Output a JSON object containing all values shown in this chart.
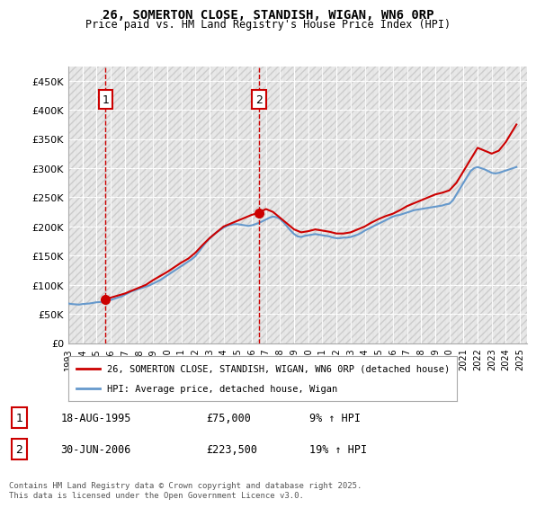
{
  "title_line1": "26, SOMERTON CLOSE, STANDISH, WIGAN, WN6 0RP",
  "title_line2": "Price paid vs. HM Land Registry's House Price Index (HPI)",
  "ylabel": "",
  "ylim": [
    0,
    475000
  ],
  "yticks": [
    0,
    50000,
    100000,
    150000,
    200000,
    250000,
    300000,
    350000,
    400000,
    450000
  ],
  "ytick_labels": [
    "£0",
    "£50K",
    "£100K",
    "£150K",
    "£200K",
    "£250K",
    "£300K",
    "£350K",
    "£400K",
    "£450K"
  ],
  "xlim_start": 1993.0,
  "xlim_end": 2025.5,
  "price_paid_color": "#cc0000",
  "hpi_color": "#6699cc",
  "legend_label_price": "26, SOMERTON CLOSE, STANDISH, WIGAN, WN6 0RP (detached house)",
  "legend_label_hpi": "HPI: Average price, detached house, Wigan",
  "marker1_x": 1995.63,
  "marker1_y": 75000,
  "marker1_label": "1",
  "marker2_x": 2006.5,
  "marker2_y": 223500,
  "marker2_label": "2",
  "dashed_line1_x": 1995.63,
  "dashed_line2_x": 2006.5,
  "table_data": [
    {
      "num": "1",
      "date": "18-AUG-1995",
      "price": "£75,000",
      "hpi": "9% ↑ HPI"
    },
    {
      "num": "2",
      "date": "30-JUN-2006",
      "price": "£223,500",
      "hpi": "19% ↑ HPI"
    }
  ],
  "footer": "Contains HM Land Registry data © Crown copyright and database right 2025.\nThis data is licensed under the Open Government Licence v3.0.",
  "bg_hatch_color": "#dddddd",
  "grid_color": "#ffffff",
  "plot_bg": "#f0f0f0",
  "hpi_data_x": [
    1993.0,
    1993.25,
    1993.5,
    1993.75,
    1994.0,
    1994.25,
    1994.5,
    1994.75,
    1995.0,
    1995.25,
    1995.5,
    1995.75,
    1996.0,
    1996.25,
    1996.5,
    1996.75,
    1997.0,
    1997.25,
    1997.5,
    1997.75,
    1998.0,
    1998.25,
    1998.5,
    1998.75,
    1999.0,
    1999.25,
    1999.5,
    1999.75,
    2000.0,
    2000.25,
    2000.5,
    2000.75,
    2001.0,
    2001.25,
    2001.5,
    2001.75,
    2002.0,
    2002.25,
    2002.5,
    2002.75,
    2003.0,
    2003.25,
    2003.5,
    2003.75,
    2004.0,
    2004.25,
    2004.5,
    2004.75,
    2005.0,
    2005.25,
    2005.5,
    2005.75,
    2006.0,
    2006.25,
    2006.5,
    2006.75,
    2007.0,
    2007.25,
    2007.5,
    2007.75,
    2008.0,
    2008.25,
    2008.5,
    2008.75,
    2009.0,
    2009.25,
    2009.5,
    2009.75,
    2010.0,
    2010.25,
    2010.5,
    2010.75,
    2011.0,
    2011.25,
    2011.5,
    2011.75,
    2012.0,
    2012.25,
    2012.5,
    2012.75,
    2013.0,
    2013.25,
    2013.5,
    2013.75,
    2014.0,
    2014.25,
    2014.5,
    2014.75,
    2015.0,
    2015.25,
    2015.5,
    2015.75,
    2016.0,
    2016.25,
    2016.5,
    2016.75,
    2017.0,
    2017.25,
    2017.5,
    2017.75,
    2018.0,
    2018.25,
    2018.5,
    2018.75,
    2019.0,
    2019.25,
    2019.5,
    2019.75,
    2020.0,
    2020.25,
    2020.5,
    2020.75,
    2021.0,
    2021.25,
    2021.5,
    2021.75,
    2022.0,
    2022.25,
    2022.5,
    2022.75,
    2023.0,
    2023.25,
    2023.5,
    2023.75,
    2024.0,
    2024.25,
    2024.5,
    2024.75
  ],
  "hpi_data_y": [
    68000,
    67000,
    66500,
    66000,
    67000,
    67500,
    68000,
    69000,
    70000,
    70500,
    71000,
    72000,
    74000,
    76000,
    78000,
    80000,
    83000,
    86000,
    89000,
    91000,
    93000,
    95000,
    97000,
    99000,
    102000,
    105000,
    108000,
    112000,
    116000,
    120000,
    124000,
    128000,
    132000,
    136000,
    140000,
    144000,
    149000,
    157000,
    165000,
    173000,
    179000,
    185000,
    190000,
    194000,
    198000,
    201000,
    203000,
    204000,
    204000,
    203000,
    202000,
    201000,
    202000,
    204000,
    206000,
    209000,
    212000,
    215000,
    217000,
    216000,
    213000,
    207000,
    200000,
    193000,
    187000,
    183000,
    182000,
    184000,
    185000,
    186000,
    187000,
    186000,
    185000,
    184000,
    183000,
    181000,
    180000,
    180000,
    181000,
    181000,
    182000,
    184000,
    186000,
    189000,
    193000,
    196000,
    199000,
    202000,
    205000,
    208000,
    211000,
    214000,
    217000,
    219000,
    220000,
    222000,
    224000,
    226000,
    228000,
    229000,
    230000,
    231000,
    232000,
    233000,
    234000,
    235000,
    236000,
    238000,
    239000,
    245000,
    255000,
    265000,
    275000,
    285000,
    295000,
    300000,
    302000,
    300000,
    298000,
    295000,
    292000,
    291000,
    292000,
    294000,
    296000,
    298000,
    300000,
    302000
  ],
  "price_data_x": [
    1995.63,
    1995.63,
    1996.0,
    1997.0,
    1997.5,
    1998.0,
    1998.5,
    1999.0,
    1999.5,
    2000.0,
    2000.5,
    2001.0,
    2001.5,
    2002.0,
    2002.5,
    2003.0,
    2003.5,
    2004.0,
    2004.5,
    2005.0,
    2005.5,
    2006.0,
    2006.5,
    2006.5,
    2007.0,
    2007.5,
    2008.0,
    2008.5,
    2009.0,
    2009.5,
    2010.0,
    2010.5,
    2011.0,
    2011.5,
    2012.0,
    2012.5,
    2013.0,
    2013.5,
    2014.0,
    2014.5,
    2015.0,
    2015.5,
    2016.0,
    2016.5,
    2017.0,
    2017.5,
    2018.0,
    2018.5,
    2019.0,
    2019.5,
    2020.0,
    2020.5,
    2021.0,
    2021.5,
    2022.0,
    2022.5,
    2023.0,
    2023.5,
    2024.0,
    2024.5,
    2024.75
  ],
  "price_data_y": [
    75000,
    75000,
    78000,
    85000,
    90000,
    95000,
    100000,
    108000,
    115000,
    122000,
    130000,
    138000,
    145000,
    155000,
    168000,
    180000,
    190000,
    200000,
    205000,
    210000,
    215000,
    220000,
    223500,
    223500,
    230000,
    225000,
    215000,
    205000,
    195000,
    190000,
    192000,
    195000,
    193000,
    191000,
    188000,
    188000,
    190000,
    195000,
    200000,
    207000,
    213000,
    218000,
    222000,
    228000,
    235000,
    240000,
    245000,
    250000,
    255000,
    258000,
    262000,
    275000,
    295000,
    315000,
    335000,
    330000,
    325000,
    330000,
    345000,
    365000,
    375000
  ]
}
